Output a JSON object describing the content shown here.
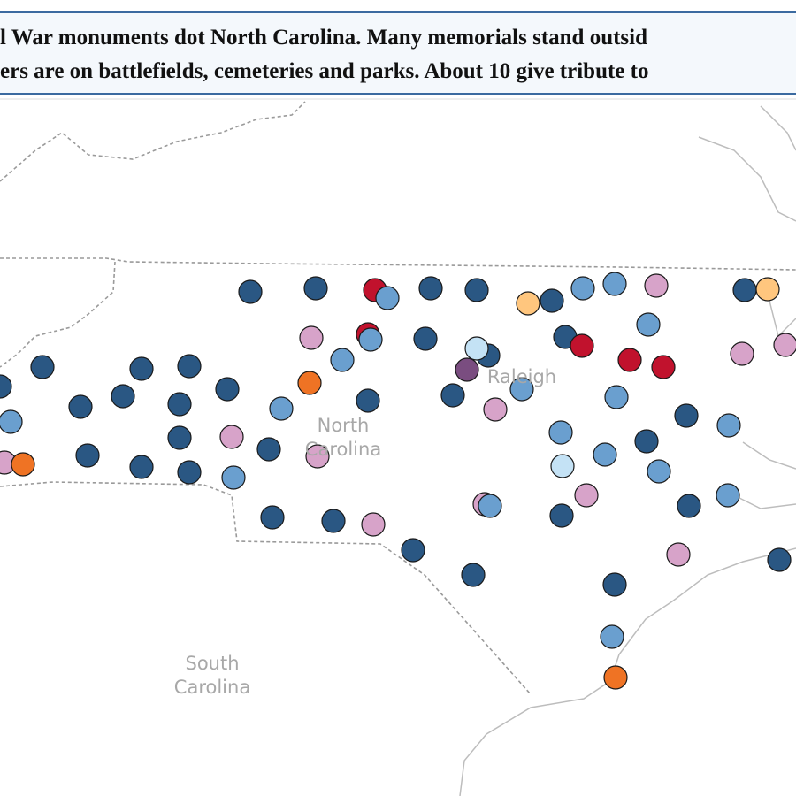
{
  "header": {
    "lines": [
      "l War monuments dot North Carolina. Many memorials stand outsid",
      "ers are on battlefields, cemeteries and parks. About 10 give tribute to"
    ]
  },
  "labels": {
    "raleigh": "Raleigh",
    "north_carolina": [
      "North",
      "Carolina"
    ],
    "south_carolina": [
      "South",
      "Carolina"
    ]
  }
}
